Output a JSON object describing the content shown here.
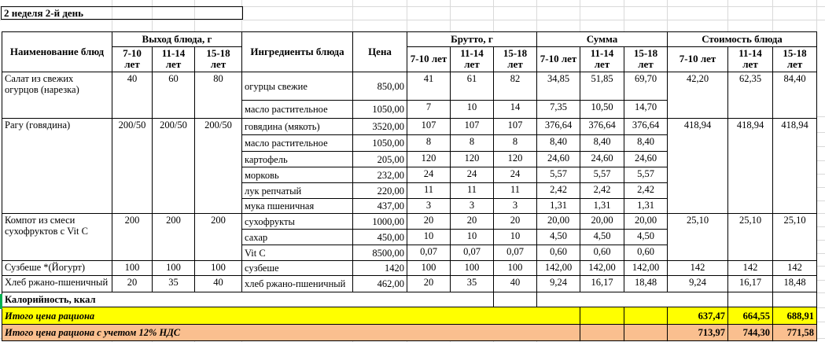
{
  "title": "2 неделя 2-й день",
  "colors": {
    "yellow": "#FFFF00",
    "orange": "#FABF8F",
    "green": "#00B050"
  },
  "header": {
    "name": "Наименование блюд",
    "output": "Выход блюда, г",
    "ingredients": "Ингредиенты блюда",
    "price": "Цена",
    "gross": "Брутто, г",
    "sum": "Сумма",
    "cost": "Стоимость блюда",
    "ages": [
      "7-10 лет",
      "11-14 лет",
      "15-18 лет"
    ]
  },
  "dishes": [
    {
      "name": "Салат из свежих огурцов (нарезка)",
      "output": [
        "40",
        "60",
        "80"
      ],
      "cost": [
        "42,20",
        "62,35",
        "84,40"
      ],
      "ingredients": [
        {
          "name": "огурцы свежие",
          "price": "850,00",
          "gross": [
            "41",
            "61",
            "82"
          ],
          "sum": [
            "34,85",
            "51,85",
            "69,70"
          ]
        },
        {
          "name": "масло растительное",
          "price": "1050,00",
          "gross": [
            "7",
            "10",
            "14"
          ],
          "sum": [
            "7,35",
            "10,50",
            "14,70"
          ]
        }
      ]
    },
    {
      "name": "Рагу (говядина)",
      "output": [
        "200/50",
        "200/50",
        "200/50"
      ],
      "cost": [
        "418,94",
        "418,94",
        "418,94"
      ],
      "ingredients": [
        {
          "name": "говядина (мякоть)",
          "price": "3520,00",
          "gross": [
            "107",
            "107",
            "107"
          ],
          "sum": [
            "376,64",
            "376,64",
            "376,64"
          ]
        },
        {
          "name": "масло растительное",
          "price": "1050,00",
          "gross": [
            "8",
            "8",
            "8"
          ],
          "sum": [
            "8,40",
            "8,40",
            "8,40"
          ]
        },
        {
          "name": "картофель",
          "price": "205,00",
          "gross": [
            "120",
            "120",
            "120"
          ],
          "sum": [
            "24,60",
            "24,60",
            "24,60"
          ]
        },
        {
          "name": "морковь",
          "price": "232,00",
          "gross": [
            "24",
            "24",
            "24"
          ],
          "sum": [
            "5,57",
            "5,57",
            "5,57"
          ]
        },
        {
          "name": "лук репчатый",
          "price": "220,00",
          "gross": [
            "11",
            "11",
            "11"
          ],
          "sum": [
            "2,42",
            "2,42",
            "2,42"
          ]
        },
        {
          "name": "мука пшеничная",
          "price": "437,00",
          "gross": [
            "3",
            "3",
            "3"
          ],
          "sum": [
            "1,31",
            "1,31",
            "1,31"
          ]
        }
      ]
    },
    {
      "name": "Компот из смеси сухофруктов с Vit C",
      "output": [
        "200",
        "200",
        "200"
      ],
      "cost": [
        "25,10",
        "25,10",
        "25,10"
      ],
      "ingredients": [
        {
          "name": "сухофрукты",
          "price": "1000,00",
          "gross": [
            "20",
            "20",
            "20"
          ],
          "sum": [
            "20,00",
            "20,00",
            "20,00"
          ]
        },
        {
          "name": "сахар",
          "price": "450,00",
          "gross": [
            "10",
            "10",
            "10"
          ],
          "sum": [
            "4,50",
            "4,50",
            "4,50"
          ]
        },
        {
          "name": "Vit C",
          "price": "8500,00",
          "gross": [
            "0,07",
            "0,07",
            "0,07"
          ],
          "sum": [
            "0,60",
            "0,60",
            "0,60"
          ]
        }
      ]
    },
    {
      "name": "Сузбеше *(Йогурт)",
      "output": [
        "100",
        "100",
        "100"
      ],
      "cost": [
        "142",
        "142",
        "142"
      ],
      "ingredients": [
        {
          "name": "сузбеше",
          "price": "1420",
          "gross": [
            "100",
            "100",
            "100"
          ],
          "sum": [
            "142,00",
            "142,00",
            "142,00"
          ]
        }
      ]
    },
    {
      "name": "Хлеб ржано-пшеничный",
      "output": [
        "20",
        "35",
        "40"
      ],
      "cost": [
        "9,24",
        "16,17",
        "18,48"
      ],
      "ingredients": [
        {
          "name": "хлеб ржано-пшеничный",
          "price": "462,00",
          "gross": [
            "20",
            "35",
            "40"
          ],
          "sum": [
            "9,24",
            "16,17",
            "18,48"
          ]
        }
      ]
    }
  ],
  "footer": {
    "calories_label": "Калорийность, ккал",
    "total_label": "Итого цена рациона",
    "total_values": [
      "637,47",
      "664,55",
      "688,91"
    ],
    "total_vat_label": "Итого цена рациона с учетом 12% НДС",
    "total_vat_values": [
      "713,97",
      "744,30",
      "771,58"
    ]
  }
}
